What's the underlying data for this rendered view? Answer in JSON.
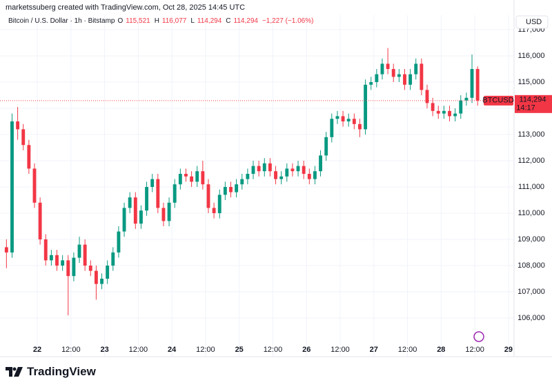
{
  "header": {
    "caption": "marketssuberg created with TradingView.com, Oct 28, 2025 14:45 UTC"
  },
  "footer": {
    "brand": "TradingView"
  },
  "legend": {
    "symbol": "Bitcoin / U.S. Dollar · 1h · Bitstamp",
    "ohlc": [
      {
        "key": "O",
        "value": "115,521"
      },
      {
        "key": "H",
        "value": "116,077"
      },
      {
        "key": "L",
        "value": "114,294"
      },
      {
        "key": "C",
        "value": "114,294"
      }
    ],
    "change": "−1,227 (−1.06%)"
  },
  "chart_data": {
    "type": "candlestick",
    "currency": "USD",
    "up_color": "#089981",
    "down_color": "#f23645",
    "last_price": {
      "value": 114294,
      "label": "114,294"
    },
    "last_symbol": "BTCUSD",
    "countdown": "14:17",
    "xlim": [
      -13.3,
      170
    ],
    "ylim": [
      104526,
      117553
    ],
    "grid": true,
    "xticks": [
      {
        "value": 0,
        "label": "22"
      },
      {
        "value": 12,
        "label": "12:00"
      },
      {
        "value": 24,
        "label": "23"
      },
      {
        "value": 36,
        "label": "12:00"
      },
      {
        "value": 48,
        "label": "24"
      },
      {
        "value": 60,
        "label": "12:00"
      },
      {
        "value": 72,
        "label": "25"
      },
      {
        "value": 84,
        "label": "12:00"
      },
      {
        "value": 96,
        "label": "26"
      },
      {
        "value": 108,
        "label": "12:00"
      },
      {
        "value": 120,
        "label": "27"
      },
      {
        "value": 132,
        "label": "12:00"
      },
      {
        "value": 144,
        "label": "28"
      },
      {
        "value": 156,
        "label": "12:00"
      },
      {
        "value": 168,
        "label": "29"
      }
    ],
    "yticks": [
      {
        "value": 106000,
        "label": "106,000"
      },
      {
        "value": 107000,
        "label": "107,000"
      },
      {
        "value": 108000,
        "label": "108,000"
      },
      {
        "value": 109000,
        "label": "109,000"
      },
      {
        "value": 110000,
        "label": "110,000"
      },
      {
        "value": 111000,
        "label": "111,000"
      },
      {
        "value": 112000,
        "label": "112,000"
      },
      {
        "value": 113000,
        "label": "113,000"
      },
      {
        "value": 114000,
        "label": "114,000"
      },
      {
        "value": 115000,
        "label": "115,000"
      },
      {
        "value": 116000,
        "label": "116,000"
      },
      {
        "value": 117000,
        "label": "117,000"
      }
    ],
    "x": [
      -11,
      -9,
      -7,
      -5,
      -3,
      -1,
      1,
      3,
      5,
      7,
      9,
      11,
      13,
      15,
      17,
      19,
      21,
      23,
      25,
      27,
      29,
      31,
      33,
      35,
      37,
      39,
      41,
      43,
      45,
      47,
      49,
      51,
      53,
      55,
      57,
      59,
      61,
      63,
      65,
      67,
      69,
      71,
      73,
      75,
      77,
      79,
      81,
      83,
      85,
      87,
      89,
      91,
      93,
      95,
      97,
      99,
      101,
      103,
      105,
      107,
      109,
      111,
      113,
      115,
      117,
      119,
      121,
      123,
      125,
      127,
      129,
      131,
      133,
      135,
      137,
      139,
      141,
      143,
      145,
      147,
      149,
      151,
      153,
      155,
      157
    ],
    "open": [
      108700,
      108500,
      113500,
      113200,
      112600,
      111700,
      110400,
      109000,
      108200,
      108400,
      108000,
      108200,
      107600,
      108300,
      108800,
      108000,
      107800,
      107300,
      107500,
      108000,
      108500,
      109300,
      110200,
      110600,
      109600,
      110100,
      111000,
      111300,
      110200,
      109700,
      110400,
      111100,
      111500,
      111400,
      111200,
      111600,
      111100,
      110200,
      110000,
      110700,
      111000,
      110800,
      111100,
      111300,
      111500,
      111800,
      111600,
      111900,
      111600,
      111300,
      111400,
      111700,
      111600,
      111800,
      111500,
      111300,
      111600,
      112200,
      112900,
      113600,
      113700,
      113500,
      113600,
      113400,
      113200,
      114900,
      115000,
      115300,
      115700,
      115500,
      115200,
      115300,
      114900,
      115300,
      115700,
      114700,
      114200,
      113900,
      113800,
      113900,
      113700,
      113800,
      114300,
      114400,
      115500
    ],
    "high": [
      109000,
      113800,
      114050,
      113400,
      112800,
      111900,
      110600,
      109200,
      108600,
      108600,
      108400,
      108400,
      108500,
      109100,
      109000,
      108200,
      108000,
      107700,
      108200,
      108700,
      109500,
      110400,
      110800,
      110800,
      110300,
      111200,
      111500,
      111500,
      110400,
      110600,
      111300,
      111700,
      111700,
      111600,
      111800,
      112000,
      111300,
      110400,
      110900,
      111200,
      111200,
      111300,
      111500,
      111700,
      112000,
      112000,
      112100,
      112100,
      111800,
      111600,
      111900,
      111900,
      112000,
      112000,
      111700,
      111800,
      112400,
      113100,
      113800,
      113900,
      113900,
      113800,
      113800,
      113600,
      115100,
      115200,
      115500,
      115900,
      116300,
      115700,
      115500,
      115500,
      115500,
      115900,
      115900,
      114900,
      114400,
      114100,
      114100,
      114100,
      114000,
      114500,
      114600,
      116050,
      115600
    ],
    "low": [
      107900,
      108300,
      112800,
      112400,
      111500,
      110200,
      108800,
      108000,
      108000,
      107800,
      107800,
      106100,
      107400,
      108100,
      107800,
      107600,
      106700,
      107100,
      107300,
      107800,
      108300,
      109100,
      110000,
      109400,
      109400,
      109900,
      110800,
      110000,
      109500,
      109500,
      110200,
      110900,
      111200,
      111000,
      111000,
      110900,
      110000,
      109800,
      109800,
      110500,
      110600,
      110600,
      110900,
      111100,
      111300,
      111400,
      111400,
      111400,
      111100,
      111100,
      111200,
      111400,
      111400,
      111300,
      111100,
      111100,
      111400,
      112000,
      112700,
      113400,
      113300,
      113300,
      113200,
      112900,
      113000,
      114700,
      114800,
      115100,
      115300,
      115000,
      115000,
      114700,
      114700,
      115100,
      114500,
      114000,
      113700,
      113600,
      113600,
      113500,
      113500,
      113600,
      114100,
      114200,
      114100
    ],
    "close": [
      108500,
      113500,
      113200,
      112600,
      111700,
      110400,
      109000,
      108200,
      108400,
      108000,
      108200,
      107600,
      108300,
      108800,
      108000,
      107800,
      107300,
      107500,
      108000,
      108500,
      109300,
      110200,
      110600,
      109600,
      110100,
      111000,
      111300,
      110200,
      109700,
      110400,
      111100,
      111500,
      111400,
      111200,
      111600,
      111100,
      110200,
      110000,
      110700,
      111000,
      110800,
      111100,
      111300,
      111500,
      111800,
      111600,
      111900,
      111600,
      111300,
      111400,
      111700,
      111600,
      111800,
      111500,
      111300,
      111600,
      112200,
      112900,
      113600,
      113700,
      113500,
      113600,
      113400,
      113200,
      114900,
      115000,
      115300,
      115700,
      115500,
      115200,
      115300,
      114900,
      115300,
      115700,
      114700,
      114200,
      113900,
      113800,
      113900,
      113700,
      113800,
      114300,
      114400,
      115500,
      114294
    ]
  }
}
